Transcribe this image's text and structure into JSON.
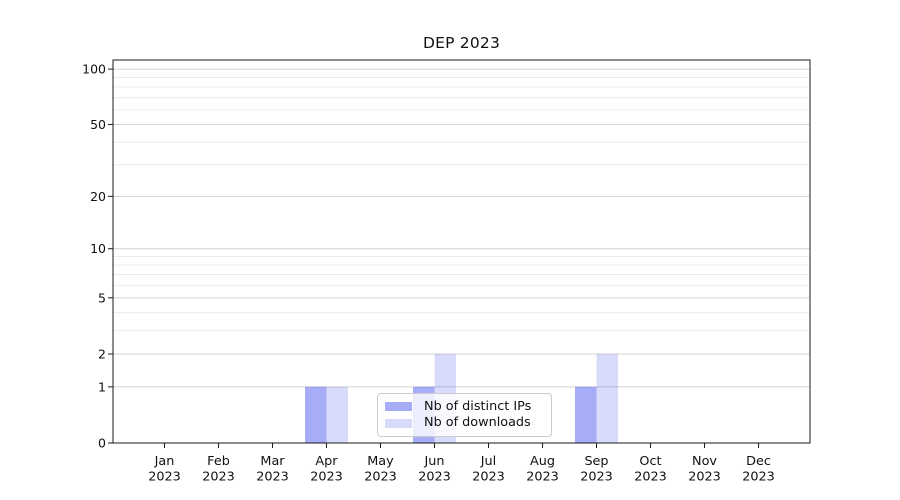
{
  "title": "DEP 2023",
  "chart_data": {
    "type": "bar",
    "title": "DEP 2023",
    "xlabel": "",
    "ylabel": "",
    "year": "2023",
    "months": [
      "Jan",
      "Feb",
      "Mar",
      "Apr",
      "May",
      "Jun",
      "Jul",
      "Aug",
      "Sep",
      "Oct",
      "Nov",
      "Dec"
    ],
    "categories": [
      "Jan 2023",
      "Feb 2023",
      "Mar 2023",
      "Apr 2023",
      "May 2023",
      "Jun 2023",
      "Jul 2023",
      "Aug 2023",
      "Sep 2023",
      "Oct 2023",
      "Nov 2023",
      "Dec 2023"
    ],
    "series": [
      {
        "name": "Nb of distinct IPs",
        "values": [
          0,
          0,
          0,
          1,
          0,
          1,
          0,
          0,
          1,
          0,
          0,
          0
        ],
        "color": "#0010e4",
        "opacity": 0.35,
        "color_flat": "#a6abf5"
      },
      {
        "name": "Nb of downloads",
        "values": [
          0,
          0,
          0,
          1,
          0,
          2,
          0,
          0,
          2,
          0,
          0,
          0
        ],
        "color": "#0010e4",
        "opacity": 0.15,
        "color_flat": "#d8dbfb"
      }
    ],
    "y_scale": "log1p",
    "y_ticks": [
      0,
      1,
      2,
      5,
      10,
      20,
      50,
      100
    ],
    "y_minor_ticks": [
      3,
      4,
      6,
      7,
      8,
      9,
      30,
      40,
      60,
      70,
      80,
      90
    ],
    "ylim": [
      0,
      112
    ],
    "grid": true,
    "legend_position": "lower center"
  },
  "colors": {
    "background": "#ffffff",
    "spine": "#1a1a1a",
    "major_grid": "#d3d3d3",
    "minor_grid": "#ececec",
    "text": "#111111",
    "legend_border": "#cccccc"
  }
}
